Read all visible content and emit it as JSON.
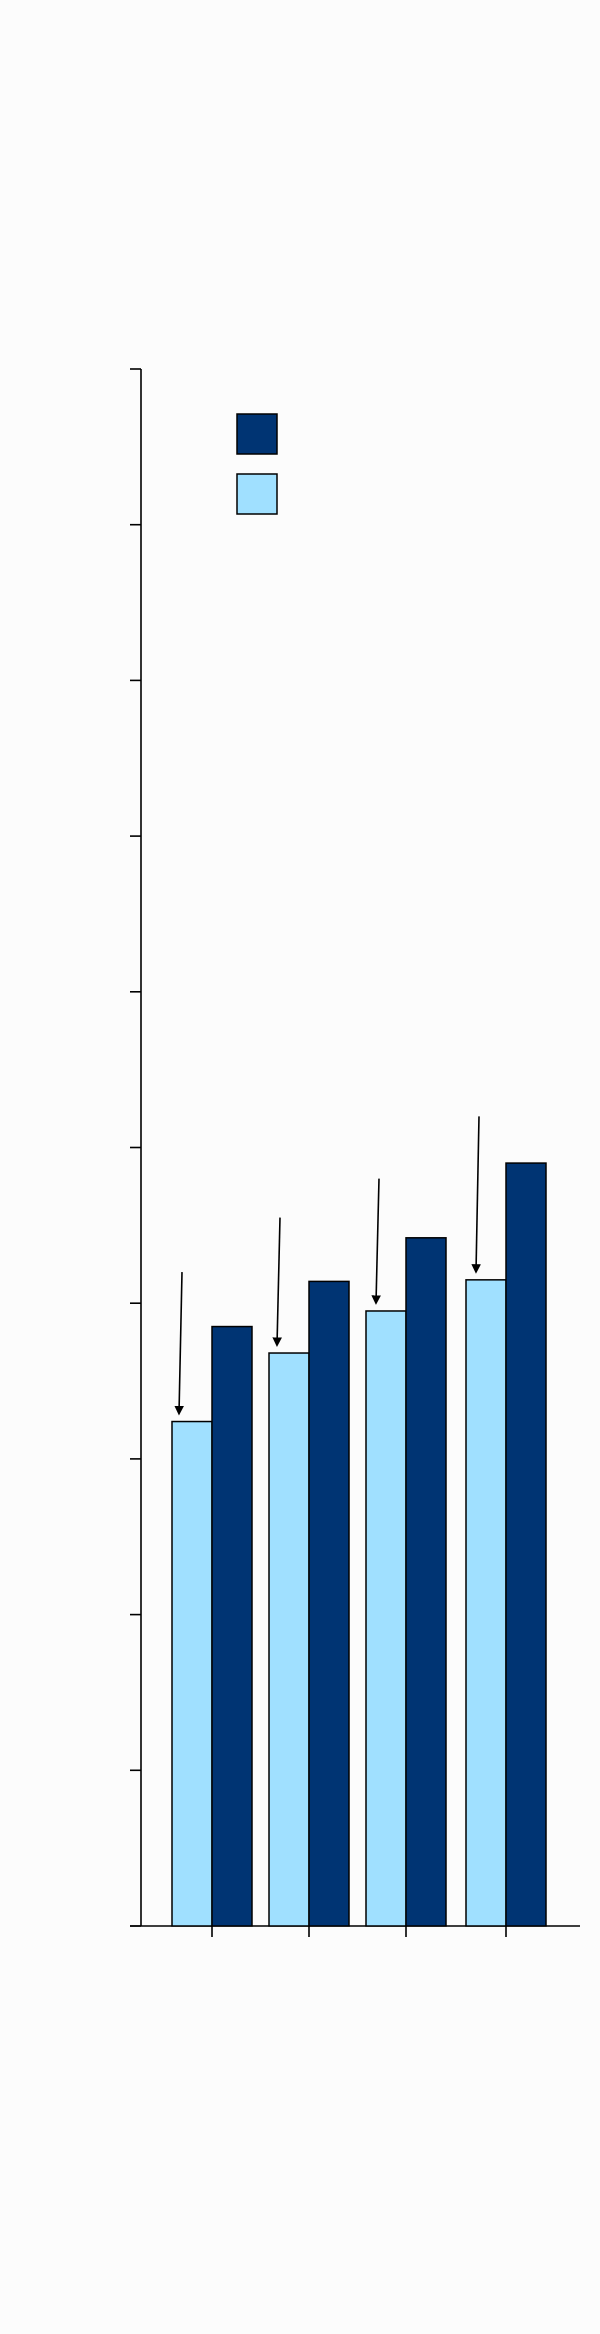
{
  "chart_data": {
    "type": "bar",
    "categories": [
      "",
      "",
      "",
      ""
    ],
    "series": [
      {
        "values": [
          3.85,
          4.14,
          4.42,
          4.9
        ],
        "color": "#003473"
      },
      {
        "values": [
          3.24,
          3.68,
          3.95,
          4.15
        ],
        "color": "#a0e0ff"
      }
    ],
    "ylim": [
      0,
      10
    ],
    "yticks": [
      0,
      1,
      2,
      3,
      4,
      5,
      6,
      7,
      8,
      9,
      10
    ],
    "grid": false,
    "legend_position": "top-left",
    "annotations": {
      "type": "downward-arrow",
      "target_series": 1,
      "start_values": [
        4.2,
        4.55,
        4.8,
        5.2
      ]
    },
    "title": "",
    "xlabel": "",
    "ylabel": ""
  }
}
